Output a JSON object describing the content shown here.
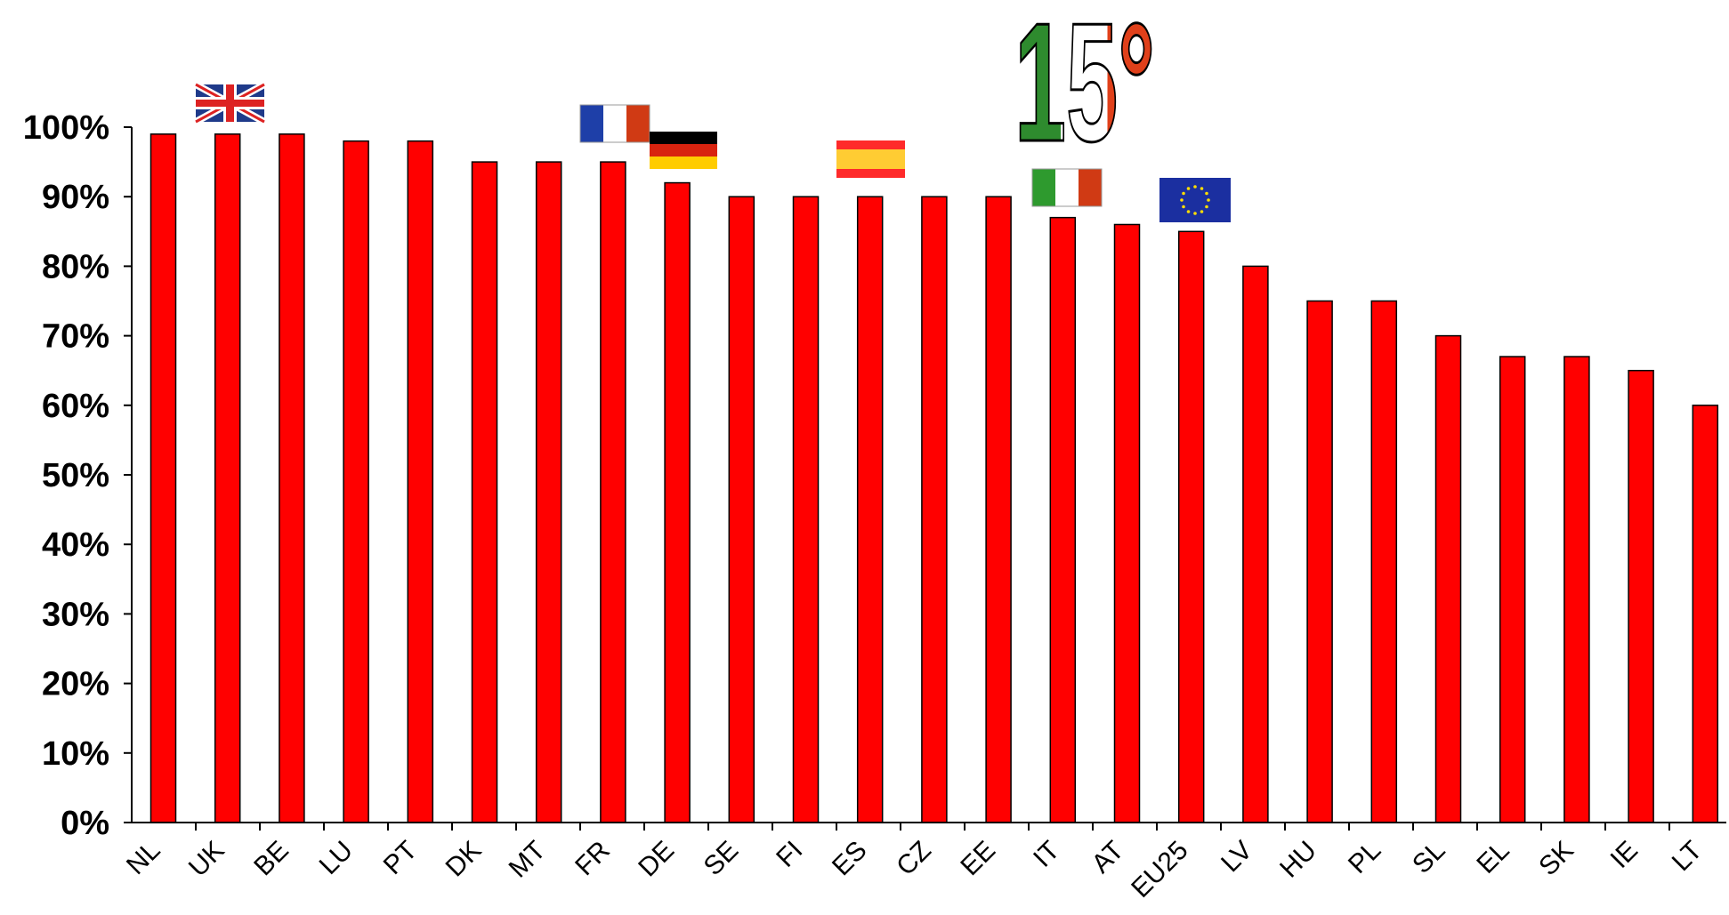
{
  "chart_data": {
    "type": "bar",
    "categories": [
      "NL",
      "UK",
      "BE",
      "LU",
      "PT",
      "DK",
      "MT",
      "FR",
      "DE",
      "SE",
      "FI",
      "ES",
      "CZ",
      "EE",
      "IT",
      "AT",
      "EU25",
      "LV",
      "HU",
      "PL",
      "SL",
      "EL",
      "SK",
      "IE",
      "LT"
    ],
    "values": [
      99,
      99,
      99,
      98,
      98,
      95,
      95,
      95,
      92,
      90,
      90,
      90,
      90,
      90,
      87,
      86,
      85,
      80,
      75,
      75,
      70,
      67,
      67,
      65,
      60
    ],
    "ylim": [
      0,
      100
    ],
    "yticks": [
      "0%",
      "10%",
      "20%",
      "30%",
      "40%",
      "50%",
      "60%",
      "70%",
      "80%",
      "90%",
      "100%"
    ],
    "title": "",
    "xlabel": "",
    "ylabel": "",
    "grid": false,
    "colors": {
      "bar": "#ff0000",
      "bar_stroke": "#000000"
    },
    "annotations": {
      "rank_label": "15°",
      "flags": [
        {
          "category": "UK",
          "icon": "uk-flag-icon"
        },
        {
          "category": "FR",
          "icon": "france-flag-icon"
        },
        {
          "category": "DE",
          "icon": "germany-flag-icon"
        },
        {
          "category": "ES",
          "icon": "spain-flag-icon"
        },
        {
          "category": "IT",
          "icon": "italy-flag-icon"
        },
        {
          "category": "EU25",
          "icon": "eu-flag-icon"
        }
      ]
    }
  }
}
